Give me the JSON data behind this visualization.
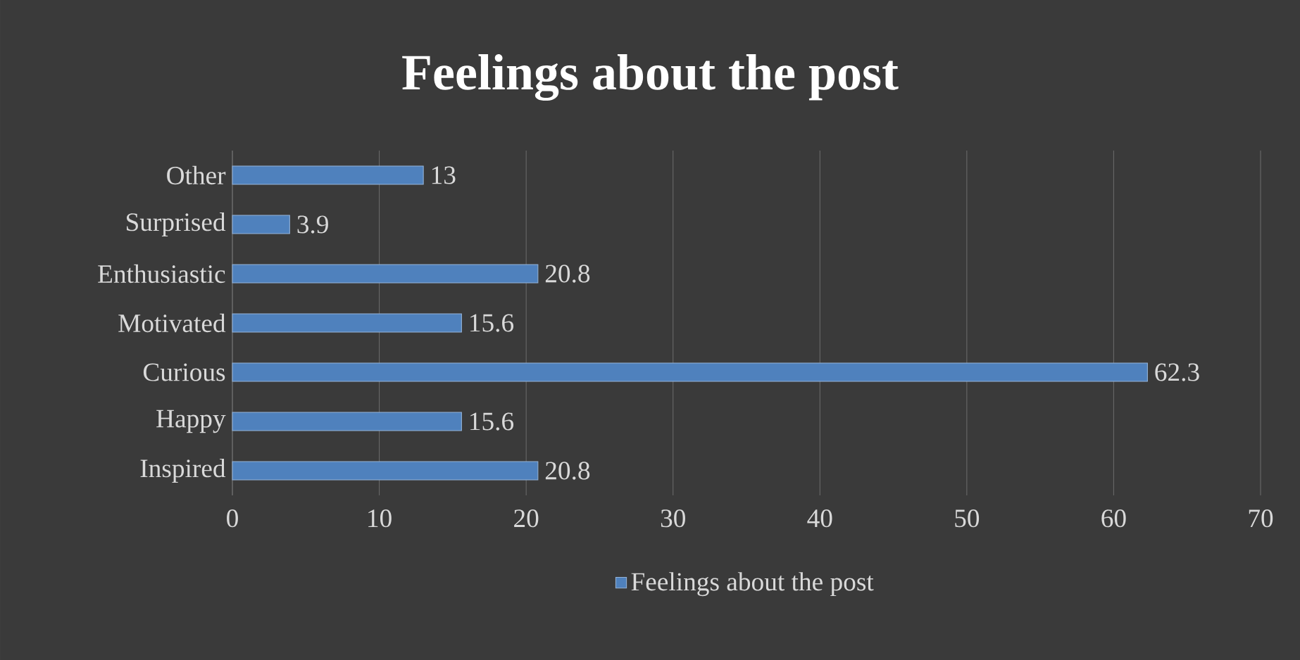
{
  "chart_data": {
    "type": "bar",
    "orientation": "horizontal",
    "title": "Feelings about the post",
    "categories": [
      "Other",
      "Surprised",
      "Enthusiastic",
      "Motivated",
      "Curious",
      "Happy",
      "Inspired"
    ],
    "series": [
      {
        "name": "Feelings about the post",
        "color": "#4f81bd",
        "values": [
          13,
          3.9,
          20.8,
          15.6,
          62.3,
          15.6,
          20.8
        ]
      }
    ],
    "xlim": [
      0,
      70
    ],
    "xticks": [
      0,
      10,
      20,
      30,
      40,
      50,
      60,
      70
    ],
    "grid": "x",
    "legend": "bottom",
    "data_labels": true
  }
}
